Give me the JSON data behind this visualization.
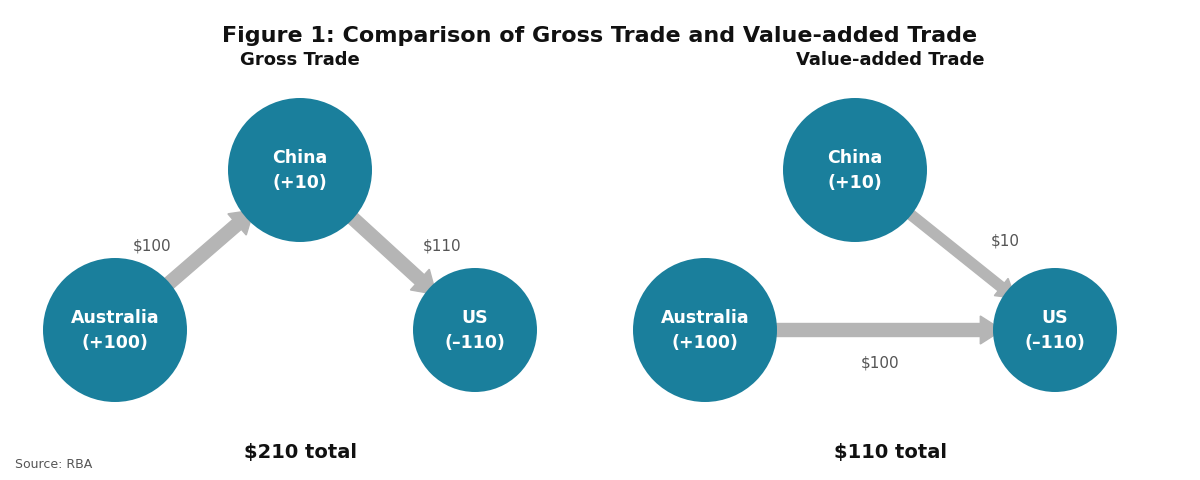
{
  "title": "Figure 1: Comparison of Gross Trade and Value-added Trade",
  "title_fontsize": 16,
  "title_fontweight": "bold",
  "background_color": "#ffffff",
  "circle_color": "#1a7f9c",
  "circle_text_color": "#ffffff",
  "arrow_color": "#b5b5b5",
  "label_color": "#555555",
  "source_text": "Source: RBA",
  "left_subtitle": "Gross Trade",
  "right_subtitle": "Value-added Trade",
  "left_total": "$210 total",
  "right_total": "$110 total",
  "figwidth": 12.0,
  "figheight": 4.81,
  "dpi": 100
}
